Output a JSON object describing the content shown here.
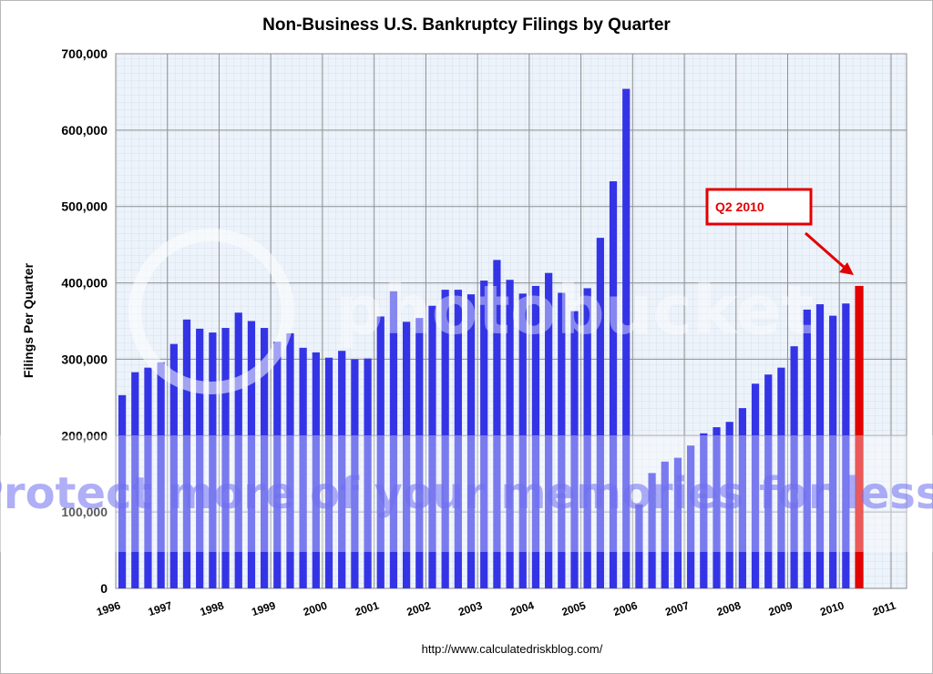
{
  "chart_data": {
    "type": "bar",
    "title": "Non-Business U.S. Bankruptcy Filings by Quarter",
    "xlabel": "",
    "ylabel": "Filings Per Quarter",
    "ylim": [
      0,
      700000
    ],
    "yticks": [
      "0",
      "100,000",
      "200,000",
      "300,000",
      "400,000",
      "500,000",
      "600,000",
      "700,000"
    ],
    "year_labels": [
      "1996",
      "1997",
      "1998",
      "1999",
      "2000",
      "2001",
      "2002",
      "2003",
      "2004",
      "2005",
      "2006",
      "2007",
      "2008",
      "2009",
      "2010",
      "2011"
    ],
    "grid": true,
    "categories": [
      "1996 Q1",
      "1996 Q2",
      "1996 Q3",
      "1996 Q4",
      "1997 Q1",
      "1997 Q2",
      "1997 Q3",
      "1997 Q4",
      "1998 Q1",
      "1998 Q2",
      "1998 Q3",
      "1998 Q4",
      "1999 Q1",
      "1999 Q2",
      "1999 Q3",
      "1999 Q4",
      "2000 Q1",
      "2000 Q2",
      "2000 Q3",
      "2000 Q4",
      "2001 Q1",
      "2001 Q2",
      "2001 Q3",
      "2001 Q4",
      "2002 Q1",
      "2002 Q2",
      "2002 Q3",
      "2002 Q4",
      "2003 Q1",
      "2003 Q2",
      "2003 Q3",
      "2003 Q4",
      "2004 Q1",
      "2004 Q2",
      "2004 Q3",
      "2004 Q4",
      "2005 Q1",
      "2005 Q2",
      "2005 Q3",
      "2005 Q4",
      "2006 Q1",
      "2006 Q2",
      "2006 Q3",
      "2006 Q4",
      "2007 Q1",
      "2007 Q2",
      "2007 Q3",
      "2007 Q4",
      "2008 Q1",
      "2008 Q2",
      "2008 Q3",
      "2008 Q4",
      "2009 Q1",
      "2009 Q2",
      "2009 Q3",
      "2009 Q4",
      "2010 Q1",
      "2010 Q2"
    ],
    "values": [
      253000,
      283000,
      289000,
      296000,
      320000,
      352000,
      340000,
      335000,
      341000,
      361000,
      350000,
      341000,
      323000,
      334000,
      315000,
      309000,
      302000,
      311000,
      300000,
      301000,
      356000,
      389000,
      349000,
      354000,
      370000,
      391000,
      391000,
      385000,
      403000,
      430000,
      404000,
      386000,
      396000,
      413000,
      387000,
      363000,
      393000,
      459000,
      533000,
      654000,
      110000,
      151000,
      166000,
      171000,
      187000,
      203000,
      211000,
      218000,
      236000,
      268000,
      280000,
      289000,
      317000,
      365000,
      372000,
      357000,
      373000,
      396000
    ],
    "bar_color": "#3434e6",
    "highlight_color": "#e20000",
    "highlight_index": 57,
    "annotations": [
      {
        "text": "Q2 2010",
        "color": "#e20000"
      }
    ],
    "source": "http://www.calculatedriskblog.com/"
  },
  "watermark": {
    "logo_text": "photobucket",
    "banner_text": "Protect more of your memories for less!",
    "banner_color": "#6e6ef0"
  }
}
